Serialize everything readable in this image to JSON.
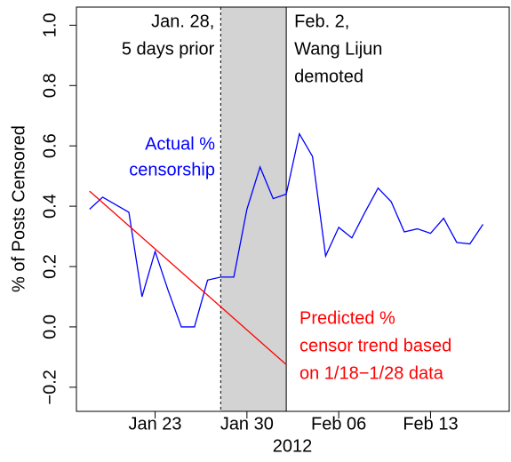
{
  "chart_data": {
    "type": "line",
    "ylabel": "% of Posts Censored",
    "xlabel": "2012",
    "xlim": [
      "2012-01-17",
      "2012-02-19"
    ],
    "ylim": [
      -0.28,
      1.06
    ],
    "xticks": [
      {
        "value": "2012-01-23",
        "label": "Jan 23"
      },
      {
        "value": "2012-01-30",
        "label": "Jan 30"
      },
      {
        "value": "2012-02-06",
        "label": "Feb 06"
      },
      {
        "value": "2012-02-13",
        "label": "Feb 13"
      }
    ],
    "yticks": [
      {
        "value": -0.2,
        "label": "−0.2"
      },
      {
        "value": 0.0,
        "label": "0.0"
      },
      0.2,
      0.4,
      0.6,
      0.8,
      {
        "value": 1.0,
        "label": "1.0"
      }
    ],
    "shade": [
      "2012-01-28",
      "2012-02-02"
    ],
    "shade_color": "#d3d3d3",
    "events": [
      {
        "x": "2012-01-28",
        "style": "dotted",
        "text": [
          "Jan. 28,",
          "5 days prior"
        ]
      },
      {
        "x": "2012-02-02",
        "style": "solid",
        "text": [
          "Feb. 2,",
          "Wang Lijun",
          "demoted"
        ]
      }
    ],
    "series": [
      {
        "color": "#0000ff",
        "text": [
          "Actual %",
          "censorship"
        ],
        "x": [
          "2012-01-18",
          "2012-01-19",
          "2012-01-20",
          "2012-01-21",
          "2012-01-22",
          "2012-01-23",
          "2012-01-24",
          "2012-01-25",
          "2012-01-26",
          "2012-01-27",
          "2012-01-28",
          "2012-01-29",
          "2012-01-30",
          "2012-01-31",
          "2012-02-01",
          "2012-02-02",
          "2012-02-03",
          "2012-02-04",
          "2012-02-05",
          "2012-02-06",
          "2012-02-07",
          "2012-02-08",
          "2012-02-09",
          "2012-02-10",
          "2012-02-11",
          "2012-02-12",
          "2012-02-13",
          "2012-02-14",
          "2012-02-15",
          "2012-02-16",
          "2012-02-17"
        ],
        "values": [
          0.39,
          0.43,
          0.405,
          0.38,
          0.1,
          0.25,
          0.12,
          0.0,
          0.0,
          0.155,
          0.165,
          0.165,
          0.39,
          0.53,
          0.425,
          0.44,
          0.64,
          0.565,
          0.235,
          0.33,
          0.295,
          0.38,
          0.46,
          0.415,
          0.315,
          0.325,
          0.31,
          0.36,
          0.28,
          0.275,
          0.34
        ]
      },
      {
        "color": "#ff0000",
        "text": [
          "Predicted %",
          "censor trend based",
          "on 1/18−1/28 data"
        ],
        "x": [
          "2012-01-18",
          "2012-02-02"
        ],
        "values": [
          0.45,
          -0.125
        ]
      }
    ]
  }
}
